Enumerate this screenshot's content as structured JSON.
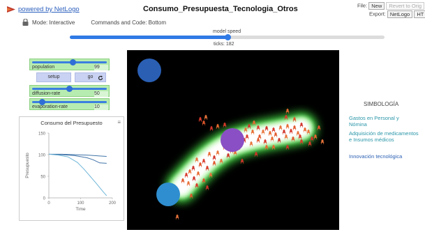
{
  "header": {
    "logo_text": "powered by NetLogo",
    "title": "Consumo_Presupuesta_Tecnologia_Otros",
    "file_label": "File:",
    "new_button": "New",
    "revert_button": "Revert to Orig",
    "export_label": "Export:",
    "export_netlogo": "NetLogo",
    "export_html": "HT"
  },
  "mode": {
    "mode_text": "Mode: Interactive",
    "commands_text": "Commands and Code: Bottom"
  },
  "speed": {
    "label": "model speed",
    "value_fraction": 0.5,
    "ticks_text": "ticks: 182"
  },
  "sliders": {
    "population": {
      "label": "population",
      "value": "99",
      "fraction": 0.55
    },
    "diffusion": {
      "label": "diffusion-rate",
      "value": "50",
      "fraction": 0.5
    },
    "evaporation": {
      "label": "evaporation-rate",
      "value": "10",
      "fraction": 0.1
    }
  },
  "buttons": {
    "setup": "setup",
    "go": "go"
  },
  "plot": {
    "title": "Consumo del Presupuesto",
    "menu_glyph": "≡"
  },
  "legend": {
    "title": "SIMBOLOGÍA",
    "items": [
      "Gastos en Personal y\nNómina",
      "Adquisición de medicamentos\ne Insumos médicos",
      "Innovación tecnológica"
    ]
  },
  "colors": {
    "budget_line_dark": "#3f73a8",
    "budget_line_light": "#6fb6d8",
    "blob_purple": "#8a4fc4",
    "blob_blue_dark": "#2a5fb4",
    "blob_blue_light": "#2f8ecf",
    "chemical_glow": "#3fcf3f"
  },
  "chart_data": {
    "type": "line",
    "title": "Consumo del Presupuesto",
    "xlabel": "Time",
    "ylabel": "Presupuesto",
    "xlim": [
      0,
      200
    ],
    "ylim": [
      0,
      150
    ],
    "x_ticks": [
      "0",
      "100",
      "200"
    ],
    "y_ticks": [
      "0",
      "50",
      "100",
      "150"
    ],
    "series": [
      {
        "x": [
          0,
          40,
          80,
          120,
          160,
          182
        ],
        "y": [
          101,
          101,
          100,
          99,
          97,
          96
        ]
      },
      {
        "x": [
          0,
          40,
          80,
          120,
          140,
          160,
          182
        ],
        "y": [
          101,
          100,
          98,
          93,
          88,
          81,
          80
        ]
      },
      {
        "x": [
          0,
          30,
          60,
          90,
          110,
          130,
          150,
          170,
          182
        ],
        "y": [
          101,
          99,
          95,
          82,
          67,
          50,
          33,
          15,
          5
        ]
      }
    ]
  }
}
